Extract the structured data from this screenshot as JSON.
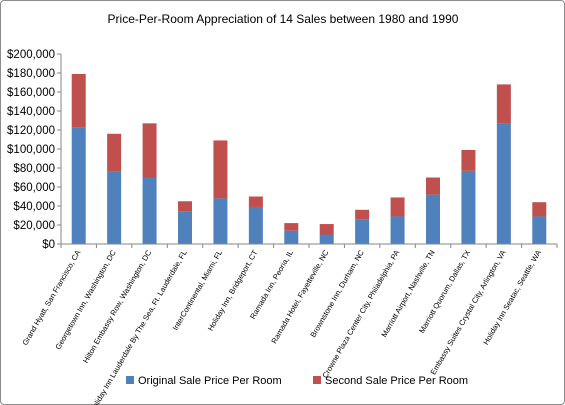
{
  "chart_data": {
    "type": "bar",
    "stacked": true,
    "title": "Price-Per-Room Appreciation of 14 Sales between 1980 and 1990",
    "xlabel": "",
    "ylabel": "",
    "ylim": [
      0,
      200000
    ],
    "yticks": [
      0,
      20000,
      40000,
      60000,
      80000,
      100000,
      120000,
      140000,
      160000,
      180000,
      200000
    ],
    "ytick_labels": [
      "$0",
      "$20,000",
      "$40,000",
      "$60,000",
      "$80,000",
      "$100,000",
      "$120,000",
      "$140,000",
      "$160,000",
      "$180,000",
      "$200,000"
    ],
    "grid": false,
    "legend_position": "bottom",
    "categories": [
      "Grand Hyatt, San Francisco, CA",
      "Georgetown Inn, Washington, DC",
      "Hilton Embassy Row, Washington, DC",
      "Holiday Inn Lauderdale By The Sea, Ft. Lauderdale, FL",
      "InterContinental, Miami, FL",
      "Holiday Inn, Bridgeport, CT",
      "Ramada Inn, Peoria, IL",
      "Ramada Hotel, Fayetteville, NC",
      "Brownstone Inn, Durham, NC",
      "Crowne Plaza Center City, Philadelphia, PA",
      "Marriott Airport, Nashville, TN",
      "Marriott Quorum, Dallas, TX",
      "Embassy Suites Crystal City, Arlington, VA",
      "Holiday Inn Seatac, Seattle, WA"
    ],
    "series": [
      {
        "name": "Original Sale Price Per Room",
        "color": "#4f81bd",
        "values": [
          123000,
          76000,
          70000,
          34000,
          48000,
          39000,
          14000,
          10000,
          26000,
          29000,
          52000,
          77000,
          127000,
          29000
        ]
      },
      {
        "name": "Second Sale Price Per Room",
        "color": "#c0504d",
        "values": [
          56000,
          40000,
          57000,
          11000,
          61000,
          11000,
          8000,
          11000,
          10000,
          20000,
          18000,
          22000,
          41000,
          15000
        ]
      }
    ]
  }
}
